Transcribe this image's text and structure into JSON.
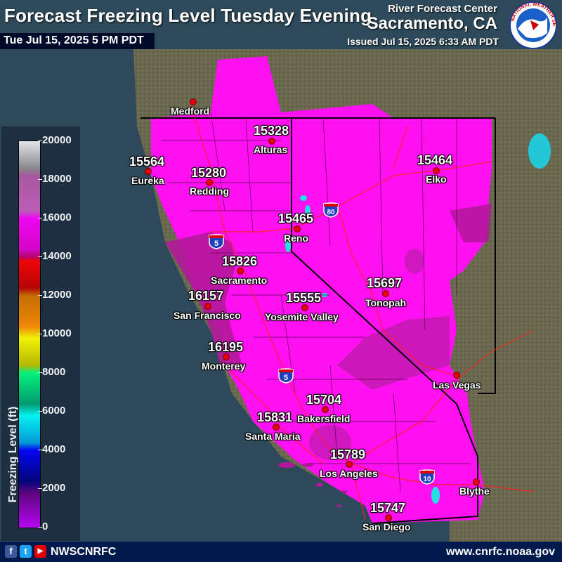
{
  "header": {
    "title": "Forecast Freezing Level Tuesday Evening",
    "valid_time": "Tue Jul 15, 2025 5 PM PDT",
    "org_line1": "River Forecast Center",
    "org_line2": "Sacramento, CA",
    "issued": "Issued Jul 15, 2025 6:33 AM PDT"
  },
  "legend": {
    "title": "Freezing Level (ft)",
    "ticks": [
      "20000",
      "18000",
      "16000",
      "14000",
      "12000",
      "10000",
      "8000",
      "6000",
      "4000",
      "2000",
      "0"
    ]
  },
  "cities": [
    {
      "name": "Medford",
      "value": ""
    },
    {
      "name": "Alturas",
      "value": "15328"
    },
    {
      "name": "Eureka",
      "value": "15564"
    },
    {
      "name": "Redding",
      "value": "15280"
    },
    {
      "name": "Elko",
      "value": "15464"
    },
    {
      "name": "Reno",
      "value": "15465"
    },
    {
      "name": "Sacramento",
      "value": "15826"
    },
    {
      "name": "Tonopah",
      "value": "15697"
    },
    {
      "name": "San Francisco",
      "value": "16157"
    },
    {
      "name": "Yosemite Valley",
      "value": "15555"
    },
    {
      "name": "Monterey",
      "value": "16195"
    },
    {
      "name": "Las Vegas",
      "value": ""
    },
    {
      "name": "Bakersfield",
      "value": "15704"
    },
    {
      "name": "Santa Maria",
      "value": "15831"
    },
    {
      "name": "Los Angeles",
      "value": "15789"
    },
    {
      "name": "Blythe",
      "value": ""
    },
    {
      "name": "San Diego",
      "value": "15747"
    }
  ],
  "highways": [
    "80",
    "5",
    "5",
    "10"
  ],
  "logo": {
    "text": "NATIONAL WEATHER SERVICE"
  },
  "footer": {
    "social": [
      "f",
      "t",
      "▶"
    ],
    "handle": "NWSCNRFC",
    "website": "www.cnrfc.noaa.gov"
  },
  "colors": {
    "magenta": "#ff00ff",
    "dark_magenta": "#a01888",
    "ocean": "#2e4a5a",
    "footer": "#001a4d",
    "city_dot": "#e8000a"
  }
}
